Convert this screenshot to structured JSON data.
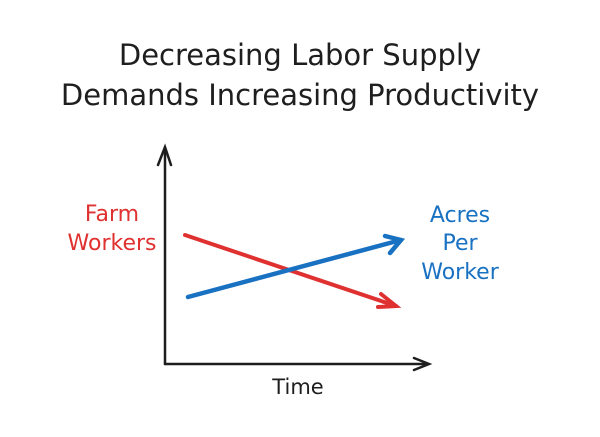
{
  "title": {
    "line1": "Decreasing Labor Supply",
    "line2": "Demands Increasing Productivity"
  },
  "series": [
    {
      "label_line1": "Farm",
      "label_line2": "Workers",
      "color": "#e03131",
      "trend": "decreasing"
    },
    {
      "label_line1": "Acres",
      "label_line2": "Per",
      "label_line3": "Worker",
      "color": "#1971c2",
      "trend": "increasing"
    }
  ],
  "x_axis": {
    "label": "Time"
  },
  "axis_color": "#1e1e1e"
}
